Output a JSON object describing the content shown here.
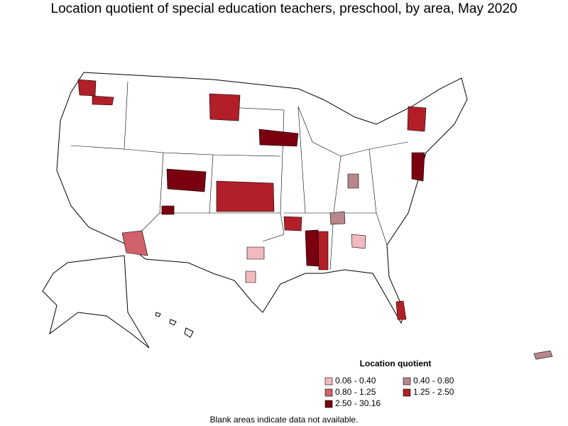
{
  "title": "Location quotient of special education teachers, preschool, by area, May 2020",
  "legend": {
    "title": "Location quotient",
    "items": [
      {
        "label": "0.06 - 0.40",
        "color": "#f4b8c0"
      },
      {
        "label": "0.40 - 0.80",
        "color": "#b8878c"
      },
      {
        "label": "0.80 - 1.25",
        "color": "#d0616a"
      },
      {
        "label": "1.25 - 2.50",
        "color": "#b21f28"
      },
      {
        "label": "2.50 - 30.16",
        "color": "#7a0010"
      }
    ]
  },
  "note": "Blank areas indicate data not available."
}
